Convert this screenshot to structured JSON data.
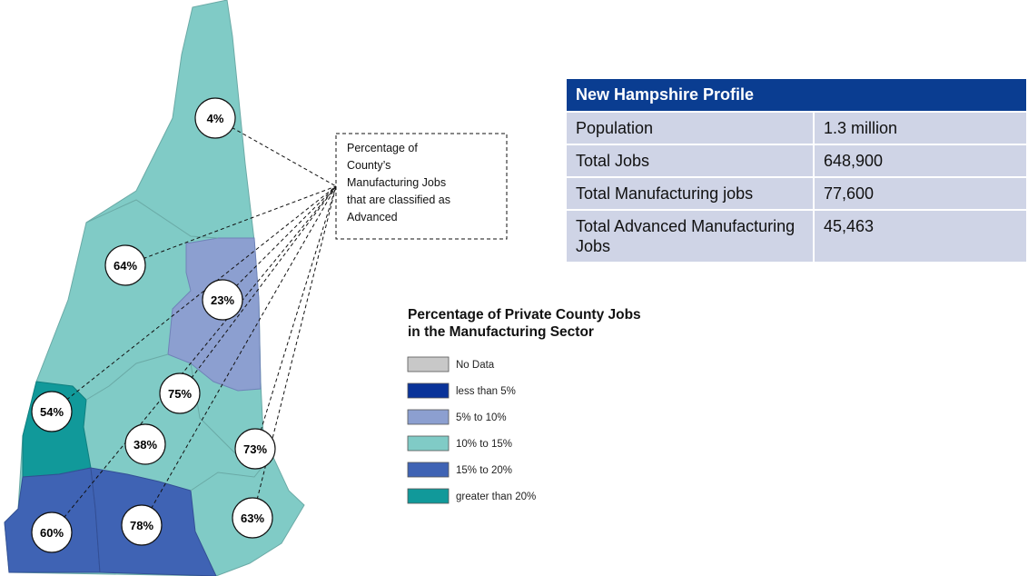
{
  "map": {
    "labels": [
      "4%",
      "64%",
      "23%",
      "75%",
      "54%",
      "38%",
      "73%",
      "60%",
      "78%",
      "63%"
    ],
    "callout": [
      "Percentage of",
      "County’s",
      "Manufacturing Jobs",
      "that are classified as",
      "Advanced"
    ]
  },
  "profile": {
    "title": "New Hampshire Profile",
    "rows": [
      [
        "Population",
        "1.3 million"
      ],
      [
        "Total Jobs",
        "648,900"
      ],
      [
        "Total Manufacturing jobs",
        "77,600"
      ],
      [
        "Total Advanced Manufacturing Jobs",
        "45,463"
      ]
    ]
  },
  "legend": {
    "title": [
      "Percentage of Private County Jobs",
      "in the Manufacturing Sector"
    ],
    "items": [
      {
        "label": "No Data",
        "color": "#c8c8c8"
      },
      {
        "label": "less than 5%",
        "color": "#0a3399"
      },
      {
        "label": "5% to 10%",
        "color": "#8c9fd0"
      },
      {
        "label": "10% to 15%",
        "color": "#80cbc6"
      },
      {
        "label": "15% to 20%",
        "color": "#3f63b4"
      },
      {
        "label": "greater than 20%",
        "color": "#11999a"
      }
    ]
  }
}
